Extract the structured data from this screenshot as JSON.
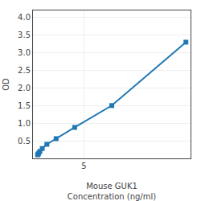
{
  "chart_data": {
    "type": "line",
    "x": [
      0,
      0.0625,
      0.125,
      0.25,
      0.5,
      1,
      2,
      4,
      8,
      16
    ],
    "values": [
      0.1,
      0.12,
      0.15,
      0.2,
      0.28,
      0.4,
      0.56,
      0.88,
      1.5,
      3.3
    ],
    "xlabel": "Mouse GUK1\nConcentration (ng/ml)",
    "ylabel": "OD",
    "xlim": [
      -0.5,
      16.5
    ],
    "ylim": [
      0,
      4.2
    ],
    "xticks": [
      5
    ],
    "yticks": [
      0.5,
      {
        "value": 1,
        "label": "1.0"
      },
      1.5,
      {
        "value": 2,
        "label": "2.0"
      },
      2.5,
      {
        "value": 3,
        "label": "3.0"
      },
      3.5,
      {
        "value": 4,
        "label": "4.0"
      }
    ],
    "marker": "square",
    "grid": true
  }
}
